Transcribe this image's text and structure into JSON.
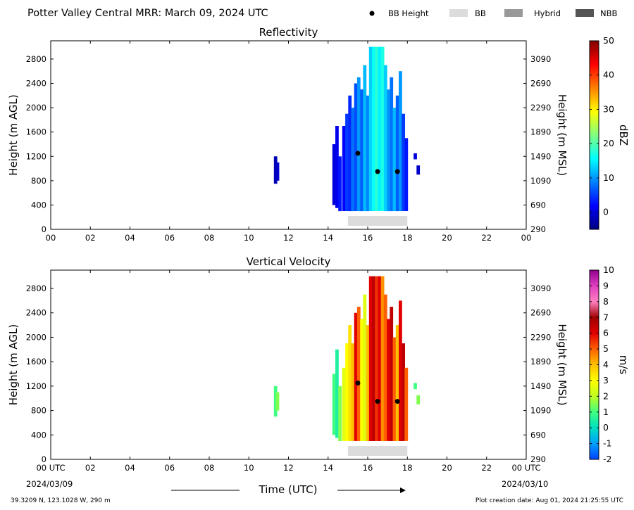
{
  "header": {
    "title": "Potter Valley Central MRR:  March 09, 2024 UTC",
    "legend": [
      {
        "label": "BB Height",
        "kind": "dot",
        "color": "#000000"
      },
      {
        "label": "BB",
        "kind": "bar",
        "color": "#dcdcdc"
      },
      {
        "label": "Hybrid",
        "kind": "bar",
        "color": "#999999"
      },
      {
        "label": "NBB",
        "kind": "bar",
        "color": "#555555"
      }
    ]
  },
  "footer": {
    "location": "39.3209 N, 123.1028 W, 290 m",
    "creation": "Plot creation date: Aug 01, 2024 21:25:55 UTC",
    "xlabel": "Time (UTC)",
    "start_date": "2024/03/09",
    "end_date": "2024/03/10"
  },
  "chart_data": [
    {
      "type": "heatmap",
      "title": "Reflectivity",
      "ylabel": "Height (m AGL)",
      "ylabel_right": "Height (m MSL)",
      "xlim": [
        0,
        24
      ],
      "ylim": [
        0,
        3100
      ],
      "x_ticks": [
        "00",
        "02",
        "04",
        "06",
        "08",
        "10",
        "12",
        "14",
        "16",
        "18",
        "20",
        "22",
        "00"
      ],
      "y_ticks": [
        0,
        400,
        800,
        1200,
        1600,
        2000,
        2400,
        2800
      ],
      "y_ticks_right": [
        290,
        690,
        1090,
        1490,
        1890,
        2290,
        2690,
        3090
      ],
      "colorbar": {
        "label": "dBZ",
        "min": -5,
        "max": 50,
        "ticks": [
          0,
          10,
          20,
          30,
          40,
          50
        ],
        "colors": [
          "#00007f",
          "#0000ff",
          "#0080ff",
          "#00ffff",
          "#80ff80",
          "#ffff00",
          "#ff8000",
          "#ff0000",
          "#7f0000"
        ]
      },
      "bb_height": [
        {
          "time": 15.5,
          "height": 1250
        },
        {
          "time": 16.5,
          "height": 950
        },
        {
          "time": 17.5,
          "height": 950
        }
      ],
      "bb_flag": [
        {
          "start": 15.0,
          "end": 18.0,
          "type": "BB"
        }
      ],
      "columns": [
        {
          "time": 11.35,
          "top": 1200,
          "bottom": 750,
          "value": -2
        },
        {
          "time": 11.45,
          "top": 1100,
          "bottom": 800,
          "value": -1
        },
        {
          "time": 14.3,
          "top": 1400,
          "bottom": 400,
          "value": 0
        },
        {
          "time": 14.45,
          "top": 1700,
          "bottom": 350,
          "value": 1
        },
        {
          "time": 14.6,
          "top": 1200,
          "bottom": 300,
          "value": 3
        },
        {
          "time": 14.8,
          "top": 1700,
          "bottom": 300,
          "value": 2
        },
        {
          "time": 14.95,
          "top": 1900,
          "bottom": 300,
          "value": 5
        },
        {
          "time": 15.1,
          "top": 2200,
          "bottom": 300,
          "value": 4
        },
        {
          "time": 15.25,
          "top": 2000,
          "bottom": 300,
          "value": 8
        },
        {
          "time": 15.4,
          "top": 2400,
          "bottom": 300,
          "value": 6
        },
        {
          "time": 15.55,
          "top": 2500,
          "bottom": 300,
          "value": 10
        },
        {
          "time": 15.7,
          "top": 2300,
          "bottom": 300,
          "value": 7
        },
        {
          "time": 15.85,
          "top": 2700,
          "bottom": 300,
          "value": 12
        },
        {
          "time": 16.0,
          "top": 2200,
          "bottom": 300,
          "value": 9
        },
        {
          "time": 16.15,
          "top": 3000,
          "bottom": 300,
          "value": 13
        },
        {
          "time": 16.3,
          "top": 3000,
          "bottom": 300,
          "value": 16
        },
        {
          "time": 16.45,
          "top": 3000,
          "bottom": 300,
          "value": 18
        },
        {
          "time": 16.6,
          "top": 3000,
          "bottom": 300,
          "value": 15
        },
        {
          "time": 16.75,
          "top": 3000,
          "bottom": 300,
          "value": 17
        },
        {
          "time": 16.9,
          "top": 2700,
          "bottom": 300,
          "value": 13
        },
        {
          "time": 17.05,
          "top": 2300,
          "bottom": 300,
          "value": 10
        },
        {
          "time": 17.2,
          "top": 2500,
          "bottom": 300,
          "value": 8
        },
        {
          "time": 17.35,
          "top": 2000,
          "bottom": 300,
          "value": 12
        },
        {
          "time": 17.5,
          "top": 2200,
          "bottom": 300,
          "value": 7
        },
        {
          "time": 17.65,
          "top": 2600,
          "bottom": 300,
          "value": 10
        },
        {
          "time": 17.8,
          "top": 1900,
          "bottom": 300,
          "value": 5
        },
        {
          "time": 17.95,
          "top": 1500,
          "bottom": 300,
          "value": 3
        },
        {
          "time": 18.4,
          "top": 1250,
          "bottom": 1150,
          "value": 0
        },
        {
          "time": 18.55,
          "top": 1050,
          "bottom": 900,
          "value": -1
        }
      ]
    },
    {
      "type": "heatmap",
      "title": "Vertical Velocity",
      "ylabel": "Height (m AGL)",
      "ylabel_right": "Height (m MSL)",
      "xlim": [
        0,
        24
      ],
      "ylim": [
        0,
        3100
      ],
      "x_ticks": [
        "00 UTC",
        "02",
        "04",
        "06",
        "08",
        "10",
        "12",
        "14",
        "16",
        "18",
        "20",
        "22",
        "00 UTC"
      ],
      "y_ticks": [
        0,
        400,
        800,
        1200,
        1600,
        2000,
        2400,
        2800
      ],
      "y_ticks_right": [
        290,
        690,
        1090,
        1490,
        1890,
        2290,
        2690,
        3090
      ],
      "colorbar": {
        "label": "m/s",
        "min": -2,
        "max": 10,
        "ticks": [
          -2,
          -1,
          0,
          1,
          2,
          3,
          4,
          5,
          6,
          7,
          8,
          9,
          10
        ],
        "colors": [
          "#0040ff",
          "#00a0ff",
          "#00e0c0",
          "#40ff80",
          "#c0ff20",
          "#ffff00",
          "#ffc000",
          "#ff6000",
          "#e00000",
          "#a00000",
          "#ff80c0",
          "#e040c0",
          "#900090"
        ]
      },
      "bb_height": [
        {
          "time": 15.5,
          "height": 1250
        },
        {
          "time": 16.5,
          "height": 950
        },
        {
          "time": 17.5,
          "height": 950
        }
      ],
      "bb_flag": [
        {
          "start": 15.0,
          "end": 18.0,
          "type": "BB"
        }
      ],
      "columns": [
        {
          "time": 11.35,
          "top": 1200,
          "bottom": 700,
          "value": 1
        },
        {
          "time": 11.45,
          "top": 1100,
          "bottom": 800,
          "value": 1.5
        },
        {
          "time": 14.3,
          "top": 1400,
          "bottom": 400,
          "value": 1
        },
        {
          "time": 14.45,
          "top": 1800,
          "bottom": 350,
          "value": 0.5
        },
        {
          "time": 14.6,
          "top": 1200,
          "bottom": 300,
          "value": 1.5
        },
        {
          "time": 14.8,
          "top": 1500,
          "bottom": 300,
          "value": 2.5
        },
        {
          "time": 14.95,
          "top": 1900,
          "bottom": 300,
          "value": 3
        },
        {
          "time": 15.1,
          "top": 2200,
          "bottom": 300,
          "value": 3.5
        },
        {
          "time": 15.25,
          "top": 1900,
          "bottom": 300,
          "value": 4
        },
        {
          "time": 15.4,
          "top": 2400,
          "bottom": 300,
          "value": 6
        },
        {
          "time": 15.55,
          "top": 2500,
          "bottom": 300,
          "value": 5
        },
        {
          "time": 15.7,
          "top": 2300,
          "bottom": 300,
          "value": 3
        },
        {
          "time": 15.85,
          "top": 2700,
          "bottom": 300,
          "value": 2.5
        },
        {
          "time": 16.0,
          "top": 2200,
          "bottom": 300,
          "value": 4
        },
        {
          "time": 16.15,
          "top": 3000,
          "bottom": 300,
          "value": 6
        },
        {
          "time": 16.3,
          "top": 3000,
          "bottom": 300,
          "value": 6.5
        },
        {
          "time": 16.45,
          "top": 3000,
          "bottom": 300,
          "value": 5.5
        },
        {
          "time": 16.6,
          "top": 3000,
          "bottom": 300,
          "value": 6
        },
        {
          "time": 16.75,
          "top": 3000,
          "bottom": 300,
          "value": 4.5
        },
        {
          "time": 16.9,
          "top": 2700,
          "bottom": 300,
          "value": 5
        },
        {
          "time": 17.05,
          "top": 2300,
          "bottom": 300,
          "value": 6
        },
        {
          "time": 17.2,
          "top": 2500,
          "bottom": 300,
          "value": 6.5
        },
        {
          "time": 17.35,
          "top": 2000,
          "bottom": 300,
          "value": 5
        },
        {
          "time": 17.5,
          "top": 2200,
          "bottom": 300,
          "value": 4
        },
        {
          "time": 17.65,
          "top": 2600,
          "bottom": 300,
          "value": 6
        },
        {
          "time": 17.8,
          "top": 1900,
          "bottom": 300,
          "value": 6.5
        },
        {
          "time": 17.95,
          "top": 1500,
          "bottom": 300,
          "value": 5
        },
        {
          "time": 18.4,
          "top": 1250,
          "bottom": 1150,
          "value": 1
        },
        {
          "time": 18.55,
          "top": 1050,
          "bottom": 900,
          "value": 1.5
        }
      ]
    }
  ]
}
